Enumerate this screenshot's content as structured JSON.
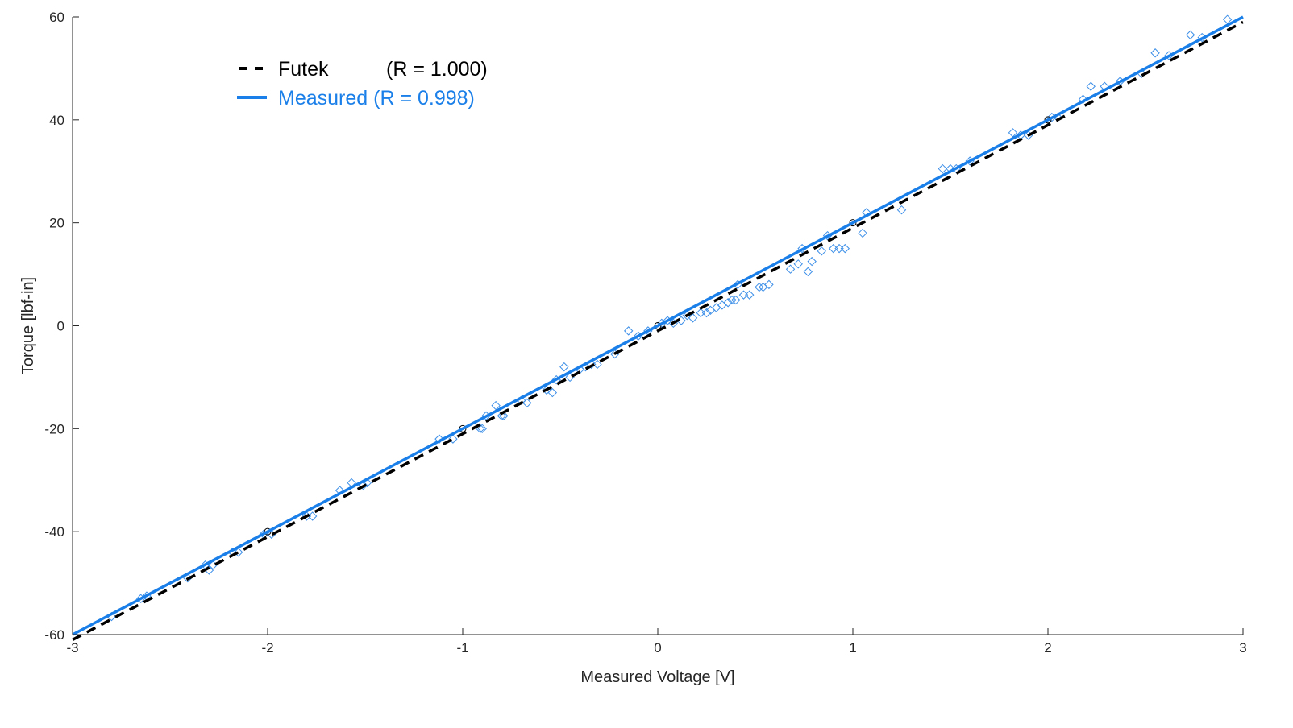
{
  "chart_data": {
    "type": "scatter",
    "title": "",
    "xlabel": "Measured Voltage [V]",
    "ylabel": "Torque [lbf-in]",
    "xlim": [
      -3,
      3
    ],
    "ylim": [
      -60,
      60
    ],
    "xticks": [
      -3,
      -2,
      -1,
      0,
      1,
      2,
      3
    ],
    "yticks": [
      -60,
      -40,
      -20,
      0,
      20,
      40,
      60
    ],
    "xtick_labels": [
      "-3",
      "-2",
      "-1",
      "0",
      "1",
      "2",
      "3"
    ],
    "ytick_labels": [
      "-60",
      "-40",
      "-20",
      "0",
      "20",
      "40",
      "60"
    ],
    "grid": false,
    "legend_position": "top-left",
    "legend": {
      "futek_name": "Futek",
      "futek_r": "(R = 1.000)",
      "measured_label": "Measured (R = 0.998)"
    },
    "colors": {
      "futek": "#000000",
      "measured": "#1a7fe8",
      "measured_markers": "#3d8fe8",
      "axes": "#262626"
    },
    "series": [
      {
        "name": "Futek",
        "kind": "line",
        "style": "dashed",
        "x": [
          -3,
          3
        ],
        "y": [
          -61,
          59
        ]
      },
      {
        "name": "Measured",
        "kind": "line",
        "style": "solid",
        "x": [
          -3,
          3
        ],
        "y": [
          -60,
          60
        ]
      },
      {
        "kind": "reference_points",
        "marker": "circle",
        "x": [
          -2,
          -1,
          0,
          1,
          2
        ],
        "y": [
          -40,
          -20,
          0,
          20,
          40
        ]
      },
      {
        "kind": "measured_points",
        "marker": "diamond",
        "x": [
          -2.8,
          -2.65,
          -2.62,
          -2.41,
          -2.32,
          -2.3,
          -2.28,
          -2.18,
          -2.15,
          -2.02,
          -1.98,
          -1.8,
          -1.77,
          -1.63,
          -1.57,
          -1.51,
          -1.49,
          -1.12,
          -1.05,
          -0.91,
          -0.9,
          -0.88,
          -0.83,
          -0.8,
          -0.79,
          -0.7,
          -0.67,
          -0.57,
          -0.54,
          -0.52,
          -0.48,
          -0.45,
          -0.4,
          -0.37,
          -0.34,
          -0.31,
          -0.22,
          -0.15,
          -0.1,
          -0.05,
          0.02,
          0.05,
          0.08,
          0.12,
          0.15,
          0.18,
          0.22,
          0.25,
          0.27,
          0.3,
          0.33,
          0.36,
          0.38,
          0.4,
          0.41,
          0.44,
          0.47,
          0.52,
          0.54,
          0.57,
          0.68,
          0.72,
          0.74,
          0.77,
          0.79,
          0.84,
          0.87,
          0.9,
          0.93,
          0.96,
          1.05,
          1.07,
          1.25,
          1.46,
          1.5,
          1.53,
          1.6,
          1.82,
          1.86,
          1.9,
          2.02,
          2.05,
          2.18,
          2.22,
          2.29,
          2.37,
          2.48,
          2.55,
          2.62,
          2.73,
          2.79,
          2.92
        ],
        "y": [
          -56.5,
          -53,
          -52.5,
          -49,
          -46.5,
          -47.5,
          -46.5,
          -44,
          -44,
          -40.5,
          -40.5,
          -37,
          -37,
          -32,
          -30.5,
          -31,
          -30.5,
          -22,
          -22,
          -20,
          -20,
          -17.5,
          -15.5,
          -17.5,
          -17.5,
          -14.5,
          -15,
          -12.5,
          -13,
          -10.5,
          -8,
          -10,
          -8.5,
          -8,
          -7.5,
          -7.5,
          -5.5,
          -1,
          -2,
          -1,
          0.5,
          1,
          0.5,
          1,
          2,
          1.5,
          2.5,
          2.5,
          3,
          3.5,
          4,
          4.5,
          5,
          5,
          8,
          6,
          6,
          7.5,
          7.5,
          8,
          11,
          12,
          15,
          10.5,
          12.5,
          14.5,
          17.5,
          15,
          15,
          15,
          18,
          22,
          22.5,
          30.5,
          30.5,
          30.5,
          32,
          37.5,
          37,
          37,
          40.5,
          40.5,
          44,
          46.5,
          46.5,
          47.5,
          49,
          53,
          52.5,
          56.5,
          56,
          59.5
        ]
      }
    ]
  }
}
